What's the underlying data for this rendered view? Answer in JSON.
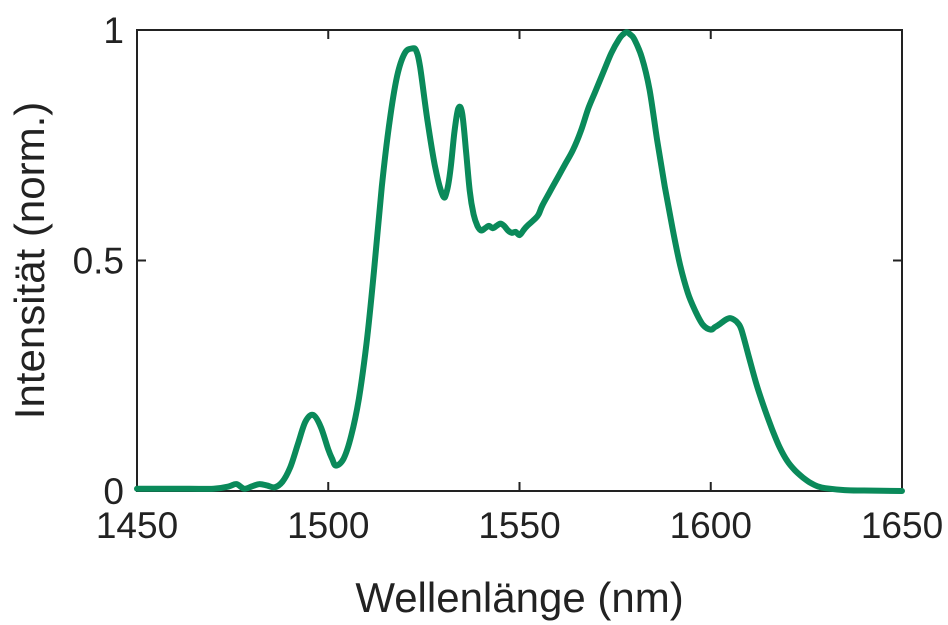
{
  "colors": {
    "line": "#0a8a5a",
    "axis": "#222222",
    "background": "#ffffff"
  },
  "chart_data": {
    "type": "line",
    "title": "",
    "xlabel": "Wellenlänge (nm)",
    "ylabel": "Intensität (norm.)",
    "xlim": [
      1450,
      1650
    ],
    "ylim": [
      0,
      1
    ],
    "xticks": [
      1450,
      1500,
      1550,
      1600,
      1650
    ],
    "xtick_labels": [
      "1450",
      "1500",
      "1550",
      "1600",
      "1650"
    ],
    "yticks": [
      0,
      0.5,
      1
    ],
    "ytick_labels": [
      "0",
      "0.5",
      "1"
    ],
    "grid": false,
    "legend": "none",
    "series": [
      {
        "x": [
          1450,
          1460,
          1470,
          1474,
          1476,
          1478,
          1480,
          1482,
          1484,
          1486,
          1488,
          1490,
          1492,
          1494,
          1496,
          1498,
          1500,
          1501,
          1502,
          1504,
          1506,
          1508,
          1510,
          1512,
          1514,
          1516,
          1518,
          1520,
          1522,
          1523,
          1524,
          1526,
          1528,
          1530,
          1531,
          1532,
          1533,
          1534,
          1535,
          1536,
          1537,
          1538,
          1539,
          1540,
          1541,
          1542,
          1543,
          1544,
          1545,
          1546,
          1547,
          1548,
          1549,
          1550,
          1551,
          1552,
          1554,
          1555,
          1556,
          1558,
          1560,
          1562,
          1564,
          1566,
          1568,
          1570,
          1572,
          1574,
          1576,
          1577,
          1578,
          1579,
          1580,
          1582,
          1584,
          1586,
          1588,
          1590,
          1592,
          1594,
          1596,
          1598,
          1600,
          1601,
          1602,
          1604,
          1605,
          1606,
          1607,
          1608,
          1610,
          1612,
          1614,
          1616,
          1618,
          1620,
          1622,
          1624,
          1626,
          1628,
          1630,
          1635,
          1640,
          1650
        ],
        "y": [
          0.005,
          0.005,
          0.005,
          0.01,
          0.015,
          0.005,
          0.01,
          0.015,
          0.012,
          0.008,
          0.02,
          0.05,
          0.1,
          0.15,
          0.165,
          0.14,
          0.09,
          0.07,
          0.055,
          0.07,
          0.12,
          0.2,
          0.32,
          0.48,
          0.66,
          0.8,
          0.9,
          0.95,
          0.96,
          0.955,
          0.92,
          0.8,
          0.7,
          0.64,
          0.65,
          0.7,
          0.78,
          0.83,
          0.82,
          0.74,
          0.65,
          0.6,
          0.575,
          0.565,
          0.57,
          0.575,
          0.57,
          0.575,
          0.58,
          0.575,
          0.565,
          0.56,
          0.562,
          0.555,
          0.565,
          0.575,
          0.59,
          0.6,
          0.62,
          0.65,
          0.68,
          0.71,
          0.74,
          0.78,
          0.83,
          0.87,
          0.91,
          0.95,
          0.98,
          0.99,
          0.995,
          0.99,
          0.98,
          0.94,
          0.87,
          0.76,
          0.66,
          0.57,
          0.49,
          0.43,
          0.39,
          0.36,
          0.35,
          0.355,
          0.36,
          0.372,
          0.375,
          0.372,
          0.365,
          0.35,
          0.29,
          0.23,
          0.18,
          0.135,
          0.095,
          0.065,
          0.045,
          0.03,
          0.018,
          0.01,
          0.006,
          0.002,
          0.001,
          0.0
        ]
      }
    ]
  }
}
